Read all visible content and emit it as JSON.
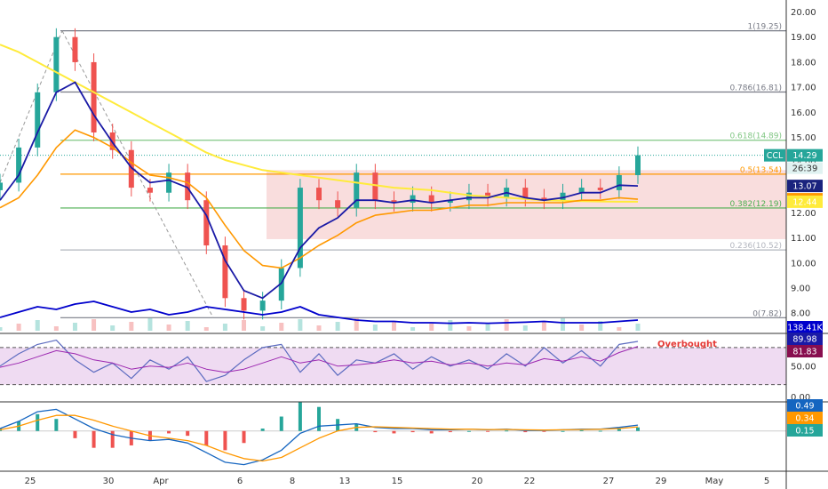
{
  "chart_data": {
    "type": "line",
    "symbol": "CCL",
    "last_price": "14.29",
    "countdown": "26:39",
    "x_ticks": [
      "25",
      "30",
      "Apr",
      "6",
      "8",
      "13",
      "15",
      "20",
      "22",
      "27",
      "29",
      "May",
      "5"
    ],
    "y_ticks": [
      "8.00",
      "9.00",
      "10.00",
      "11.00",
      "12.00",
      "13.00",
      "14.00",
      "15.00",
      "16.00",
      "17.00",
      "18.00",
      "19.00",
      "20.00"
    ],
    "ylim": [
      7.3,
      20.3
    ],
    "fib_levels": [
      {
        "label": "0(7.82)",
        "value": 7.82,
        "color": "#787b86"
      },
      {
        "label": "0.236(10.52)",
        "value": 10.52,
        "color": "#b2b5be"
      },
      {
        "label": "0.382(12.19)",
        "value": 12.19,
        "color": "#4caf50"
      },
      {
        "label": "0.5(13.54)",
        "value": 13.54,
        "color": "#ff9800"
      },
      {
        "label": "0.618(14.89)",
        "value": 14.89,
        "color": "#81c784"
      },
      {
        "label": "0.786(16.81)",
        "value": 16.81,
        "color": "#787b86"
      },
      {
        "label": "1(19.25)",
        "value": 19.25,
        "color": "#787b86"
      }
    ],
    "zone": {
      "low": 10.95,
      "high": 13.7,
      "color": "#f8d7d7"
    },
    "price_series": {
      "dates_idx": [
        0,
        1,
        2,
        3,
        4,
        5,
        6,
        7,
        8,
        9,
        10,
        11,
        12,
        13,
        14,
        15,
        16,
        17,
        18,
        19,
        20,
        21,
        22,
        23,
        24,
        25,
        26,
        27,
        28,
        29,
        30,
        31,
        32,
        33,
        34
      ],
      "close": [
        13.2,
        14.6,
        16.8,
        19.0,
        18.0,
        15.2,
        14.5,
        13.0,
        12.8,
        13.6,
        12.5,
        10.7,
        8.6,
        8.1,
        8.5,
        9.8,
        13.0,
        12.5,
        12.2,
        13.6,
        12.5,
        12.4,
        12.7,
        12.4,
        12.5,
        12.8,
        12.6,
        13.0,
        12.6,
        12.5,
        12.8,
        13.0,
        12.9,
        13.5,
        14.29
      ]
    },
    "ema_fast": [
      12.5,
      13.5,
      15.2,
      16.8,
      17.2,
      15.9,
      14.8,
      13.8,
      13.2,
      13.3,
      13.0,
      11.9,
      10.1,
      8.9,
      8.6,
      9.2,
      10.6,
      11.4,
      11.8,
      12.5,
      12.5,
      12.4,
      12.5,
      12.4,
      12.5,
      12.6,
      12.6,
      12.8,
      12.6,
      12.5,
      12.6,
      12.8,
      12.8,
      13.1,
      13.07
    ],
    "ema_slow": [
      12.2,
      12.6,
      13.5,
      14.6,
      15.3,
      15.0,
      14.6,
      14.0,
      13.5,
      13.4,
      13.2,
      12.6,
      11.5,
      10.5,
      9.9,
      9.8,
      10.2,
      10.7,
      11.1,
      11.6,
      11.9,
      12.0,
      12.1,
      12.1,
      12.2,
      12.3,
      12.3,
      12.4,
      12.4,
      12.4,
      12.4,
      12.5,
      12.5,
      12.6,
      12.54
    ],
    "ma_long": [
      18.7,
      18.4,
      18.0,
      17.6,
      17.2,
      16.8,
      16.4,
      16.0,
      15.6,
      15.2,
      14.8,
      14.4,
      14.1,
      13.9,
      13.7,
      13.6,
      13.5,
      13.4,
      13.3,
      13.2,
      13.1,
      13.0,
      12.95,
      12.9,
      12.8,
      12.7,
      12.65,
      12.6,
      12.55,
      12.5,
      12.48,
      12.46,
      12.45,
      12.44,
      12.44
    ],
    "badges": [
      {
        "text": "14.29",
        "value": 14.29,
        "color": "#26a69a"
      },
      {
        "text": "13.07",
        "value": 13.07,
        "color": "#1a237e"
      },
      {
        "text": "12.54",
        "value": 12.54,
        "color": "#ff9800"
      },
      {
        "text": "12.44",
        "value": 12.44,
        "color": "#ffeb3b",
        "text_color": "#000000"
      }
    ],
    "volume": {
      "label": "138.41K",
      "ma": [
        0.5,
        0.7,
        0.9,
        0.8,
        1.0,
        1.1,
        0.9,
        0.7,
        0.8,
        0.6,
        0.7,
        0.9,
        0.8,
        0.7,
        0.6,
        0.7,
        0.9,
        0.6,
        0.5,
        0.4,
        0.35,
        0.35,
        0.3,
        0.3,
        0.28,
        0.3,
        0.28,
        0.3,
        0.32,
        0.35,
        0.3,
        0.3,
        0.3,
        0.35,
        0.4
      ]
    },
    "rsi": {
      "ticks": [
        "0.00",
        "50.00"
      ],
      "badges": [
        "89.98",
        "81.83"
      ],
      "annotation": "Overbought",
      "ylim": [
        -5,
        100
      ],
      "upper": 80,
      "lower": 20,
      "values": [
        50,
        70,
        85,
        92,
        60,
        40,
        55,
        30,
        60,
        45,
        65,
        25,
        35,
        60,
        80,
        85,
        40,
        70,
        35,
        60,
        55,
        70,
        45,
        65,
        50,
        60,
        45,
        70,
        50,
        80,
        55,
        75,
        50,
        85,
        90
      ],
      "signal": [
        48,
        55,
        65,
        75,
        70,
        60,
        55,
        45,
        50,
        48,
        55,
        45,
        40,
        45,
        55,
        65,
        55,
        60,
        50,
        52,
        55,
        60,
        55,
        58,
        52,
        55,
        50,
        55,
        52,
        62,
        58,
        65,
        58,
        72,
        81.83
      ]
    },
    "macd": {
      "badges": [
        "0.49",
        "0.34",
        "0.15"
      ],
      "ylim": [
        -3.2,
        2.2
      ],
      "macd": [
        0.2,
        0.8,
        1.6,
        1.8,
        1.0,
        0.2,
        -0.3,
        -0.6,
        -0.8,
        -0.7,
        -1.0,
        -1.8,
        -2.6,
        -2.8,
        -2.4,
        -1.6,
        -0.2,
        0.4,
        0.5,
        0.6,
        0.3,
        0.2,
        0.2,
        0.1,
        0.1,
        0.15,
        0.1,
        0.15,
        0.05,
        0.05,
        0.1,
        0.15,
        0.15,
        0.3,
        0.49
      ],
      "signal": [
        0.1,
        0.4,
        0.9,
        1.3,
        1.3,
        0.9,
        0.4,
        0.0,
        -0.4,
        -0.6,
        -0.8,
        -1.2,
        -1.8,
        -2.3,
        -2.5,
        -2.2,
        -1.4,
        -0.6,
        0.0,
        0.3,
        0.35,
        0.3,
        0.25,
        0.2,
        0.15,
        0.15,
        0.12,
        0.13,
        0.1,
        0.08,
        0.1,
        0.12,
        0.14,
        0.2,
        0.34
      ]
    }
  }
}
